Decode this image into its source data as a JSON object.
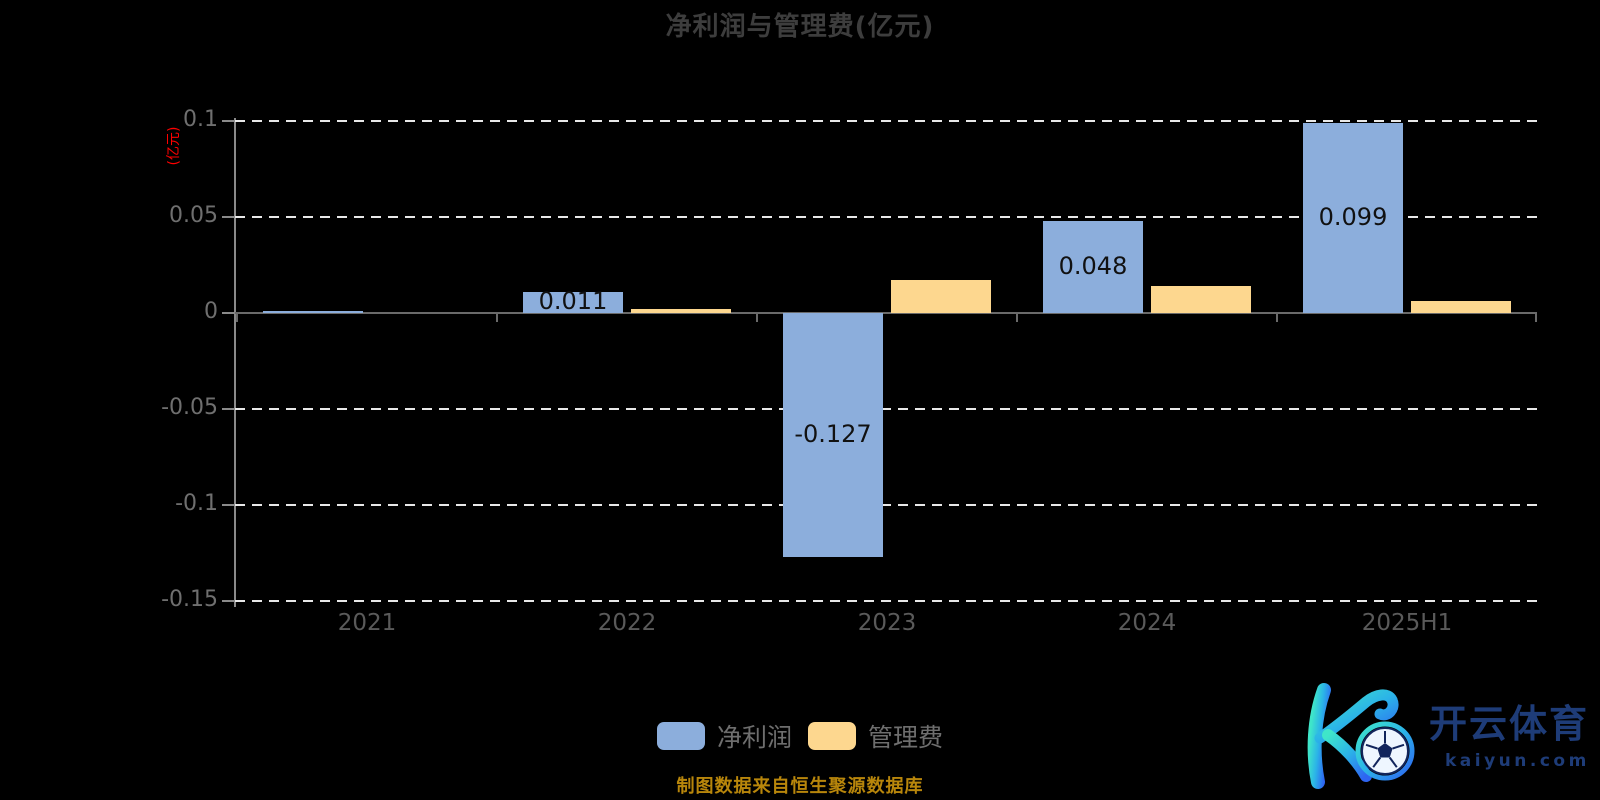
{
  "chart_data": {
    "type": "bar",
    "title": "净利润与管理费(亿元)",
    "ylabel": "(亿元)",
    "categories": [
      "2021",
      "2022",
      "2023",
      "2024",
      "2025H1"
    ],
    "series": [
      {
        "name": "净利润",
        "color": "#8CAEDC",
        "values": [
          0.001,
          0.011,
          -0.127,
          0.048,
          0.099
        ],
        "labels": [
          "",
          "0.011",
          "-0.127",
          "0.048",
          "0.099"
        ]
      },
      {
        "name": "管理费",
        "color": "#FDD78F",
        "values": [
          0,
          0.002,
          0.017,
          0.014,
          0.006
        ],
        "labels": [
          "",
          "",
          "",
          "",
          ""
        ]
      }
    ],
    "yticks": [
      {
        "value": 0.1,
        "label": "0.1"
      },
      {
        "value": 0.05,
        "label": "0.05"
      },
      {
        "value": 0,
        "label": "0"
      },
      {
        "value": -0.05,
        "label": "-0.05"
      },
      {
        "value": -0.1,
        "label": "-0.1"
      },
      {
        "value": -0.15,
        "label": "-0.15"
      }
    ],
    "ylim": [
      -0.15,
      0.1
    ],
    "grid": "dashed-white",
    "legend_position": "bottom"
  },
  "footer": {
    "text": "制图数据来自恒生聚源数据库"
  },
  "logo": {
    "cn_text": "开云体育",
    "domain_text": "kaiyun.com"
  },
  "colors": {
    "background": "#000000",
    "net_profit_bar": "#8CAEDC",
    "mgmt_fee_bar": "#FDD78F",
    "gridline": "#E8E8E8",
    "zero_axis": "#6A6A6A",
    "y_axis": "#8A8A8A",
    "title_text": "#3D3D3D",
    "y_tick_label": "#6F6F6F",
    "x_label": "#5A5A5A",
    "legend_label": "#6E6E6E",
    "footer_text": "#B8860B",
    "unit_label": "#FF0000",
    "bar_value_label": "#111111",
    "logo_navy": "#1E3C78"
  }
}
